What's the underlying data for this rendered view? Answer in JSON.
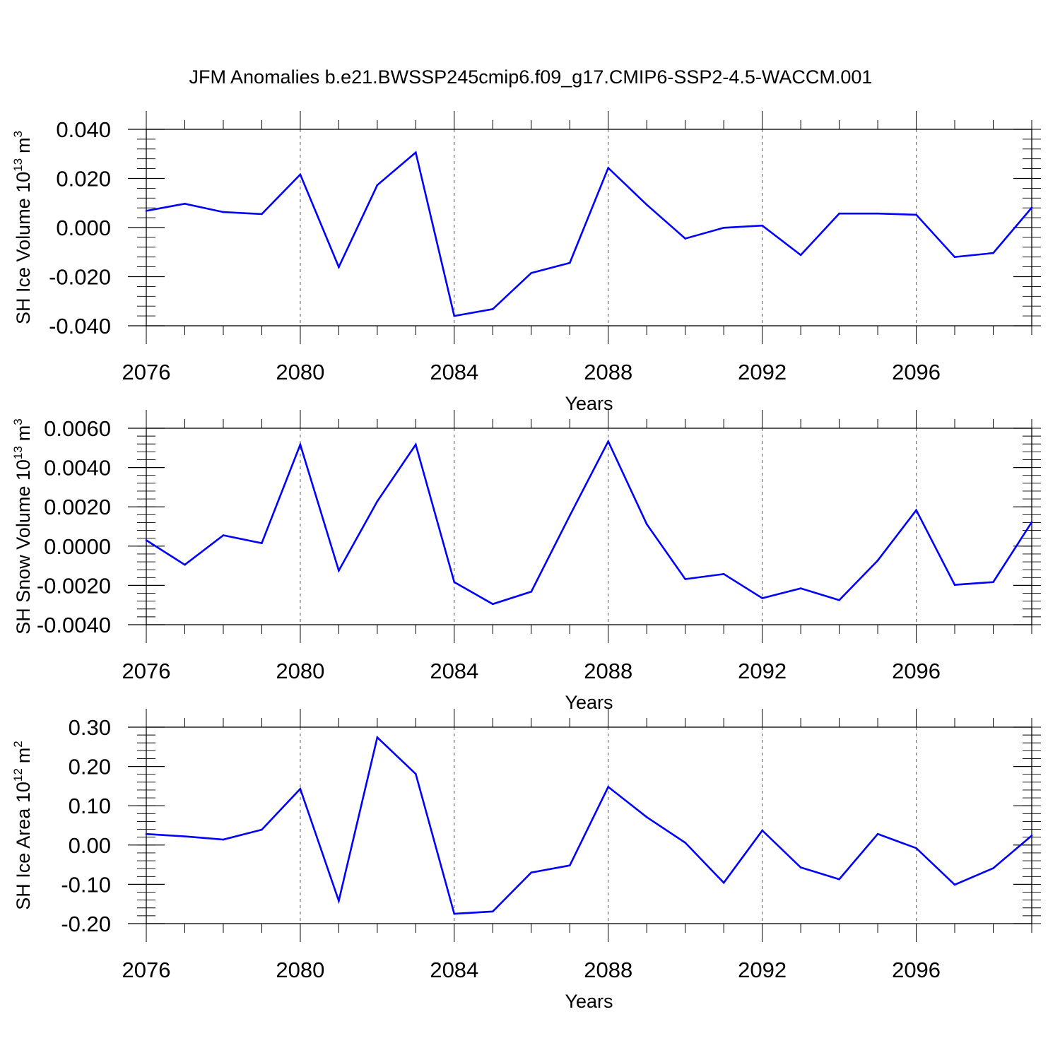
{
  "title": "JFM Anomalies b.e21.BWSSP245cmip6.f09_g17.CMIP6-SSP2-4.5-WACCM.001",
  "colors": {
    "line": "#0000ff",
    "axis": "#000000",
    "grid": "#555555"
  },
  "chart_data": [
    {
      "type": "line",
      "ylabel": "SH Ice Volume 10",
      "ylabel_exp": "13",
      "ylabel_unit": "m",
      "ylabel_unit_exp": "3",
      "xlabel": "Years",
      "xlim": [
        2076,
        2099
      ],
      "ylim": [
        -0.04,
        0.04
      ],
      "yticks": [
        -0.04,
        -0.02,
        0.0,
        0.02,
        0.04
      ],
      "ytick_labels": [
        "-0.040",
        "-0.020",
        "0.000",
        "0.020",
        "0.040"
      ],
      "yminor_step": 0.004,
      "xticks": [
        2076,
        2080,
        2084,
        2088,
        2092,
        2096
      ],
      "xtick_labels": [
        "2076",
        "2080",
        "2084",
        "2088",
        "2092",
        "2096"
      ],
      "grid_x": [
        2080,
        2084,
        2088,
        2092,
        2096
      ],
      "x": [
        2076,
        2077,
        2078,
        2079,
        2080,
        2081,
        2082,
        2083,
        2084,
        2085,
        2086,
        2087,
        2088,
        2089,
        2090,
        2091,
        2092,
        2093,
        2094,
        2095,
        2096,
        2097,
        2098,
        2099
      ],
      "values": [
        0.0068,
        0.0097,
        0.0063,
        0.0055,
        0.0216,
        -0.0161,
        0.0173,
        0.0306,
        -0.036,
        -0.0332,
        -0.0185,
        -0.0144,
        0.0243,
        0.0093,
        -0.0045,
        -0.0001,
        0.0008,
        -0.0112,
        0.0057,
        0.0057,
        0.0052,
        -0.012,
        -0.0104,
        0.0081
      ]
    },
    {
      "type": "line",
      "ylabel": "SH Snow Volume 10",
      "ylabel_exp": "13",
      "ylabel_unit": "m",
      "ylabel_unit_exp": "3",
      "xlabel": "Years",
      "xlim": [
        2076,
        2099
      ],
      "ylim": [
        -0.004,
        0.006
      ],
      "yticks": [
        -0.004,
        -0.002,
        0.0,
        0.002,
        0.004,
        0.006
      ],
      "ytick_labels": [
        "-0.0040",
        "-0.0020",
        "0.0000",
        "0.0020",
        "0.0040",
        "0.0060"
      ],
      "yminor_step": 0.0004,
      "xticks": [
        2076,
        2080,
        2084,
        2088,
        2092,
        2096
      ],
      "xtick_labels": [
        "2076",
        "2080",
        "2084",
        "2088",
        "2092",
        "2096"
      ],
      "grid_x": [
        2080,
        2084,
        2088,
        2092,
        2096
      ],
      "x": [
        2076,
        2077,
        2078,
        2079,
        2080,
        2081,
        2082,
        2083,
        2084,
        2085,
        2086,
        2087,
        2088,
        2089,
        2090,
        2091,
        2092,
        2093,
        2094,
        2095,
        2096,
        2097,
        2098,
        2099
      ],
      "values": [
        0.0003,
        -0.00095,
        0.00055,
        0.00015,
        0.00517,
        -0.00125,
        0.00228,
        0.00517,
        -0.00183,
        -0.00295,
        -0.00232,
        0.00155,
        0.00533,
        0.00112,
        -0.00168,
        -0.00142,
        -0.00265,
        -0.00215,
        -0.00275,
        -0.00073,
        0.00183,
        -0.00197,
        -0.00183,
        0.00122
      ]
    },
    {
      "type": "line",
      "ylabel": "SH Ice Area 10",
      "ylabel_exp": "12",
      "ylabel_unit": "m",
      "ylabel_unit_exp": "2",
      "xlabel": "Years",
      "xlim": [
        2076,
        2099
      ],
      "ylim": [
        -0.2,
        0.3
      ],
      "yticks": [
        -0.2,
        -0.1,
        0.0,
        0.1,
        0.2,
        0.3
      ],
      "ytick_labels": [
        "-0.20",
        "-0.10",
        "0.00",
        "0.10",
        "0.20",
        "0.30"
      ],
      "yminor_step": 0.02,
      "xticks": [
        2076,
        2080,
        2084,
        2088,
        2092,
        2096
      ],
      "xtick_labels": [
        "2076",
        "2080",
        "2084",
        "2088",
        "2092",
        "2096"
      ],
      "grid_x": [
        2080,
        2084,
        2088,
        2092,
        2096
      ],
      "x": [
        2076,
        2077,
        2078,
        2079,
        2080,
        2081,
        2082,
        2083,
        2084,
        2085,
        2086,
        2087,
        2088,
        2089,
        2090,
        2091,
        2092,
        2093,
        2094,
        2095,
        2096,
        2097,
        2098,
        2099
      ],
      "values": [
        0.028,
        0.022,
        0.014,
        0.039,
        0.143,
        -0.142,
        0.274,
        0.181,
        -0.175,
        -0.169,
        -0.07,
        -0.052,
        0.148,
        0.071,
        0.006,
        -0.096,
        0.037,
        -0.057,
        -0.087,
        0.028,
        -0.008,
        -0.101,
        -0.059,
        0.024
      ]
    }
  ]
}
